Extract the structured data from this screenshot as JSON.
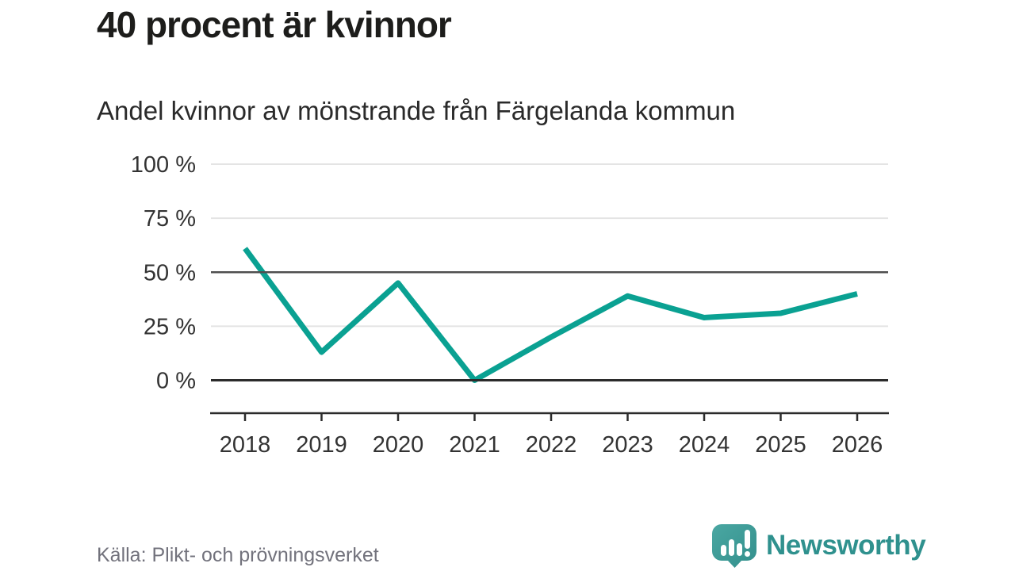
{
  "chart_data": {
    "type": "line",
    "title": "40 procent är kvinnor",
    "subtitle": "Andel kvinnor av mönstrande från Färgelanda kommun",
    "x": [
      2018,
      2019,
      2020,
      2021,
      2022,
      2023,
      2024,
      2025,
      2026
    ],
    "series": [
      {
        "name": "Andel kvinnor av mönstrande",
        "values": [
          61,
          13,
          45,
          0,
          20,
          39,
          29,
          31,
          40
        ]
      }
    ],
    "unit": "%",
    "ylim": [
      0,
      100
    ],
    "yticks": [
      0,
      25,
      50,
      75,
      100
    ],
    "ytick_suffix": " %",
    "grid": "horizontal",
    "emphasized_gridlines": [
      0,
      50
    ],
    "legend": "none",
    "line_color": "#0aa192"
  },
  "footer": {
    "source": "Källa: Plikt- och prövningsverket",
    "brand": "Newsworthy"
  },
  "colors": {
    "accent": "#0aa192",
    "title_text": "#1d1d1b",
    "tick_text": "#333333",
    "grid_light": "#e4e4e4",
    "grid_dark": "#4f4f4f",
    "baseline": "#2b2b2b",
    "source_text": "#72727c",
    "brand_teal": "#2f918e",
    "logo_fill": "#3e9b97"
  }
}
